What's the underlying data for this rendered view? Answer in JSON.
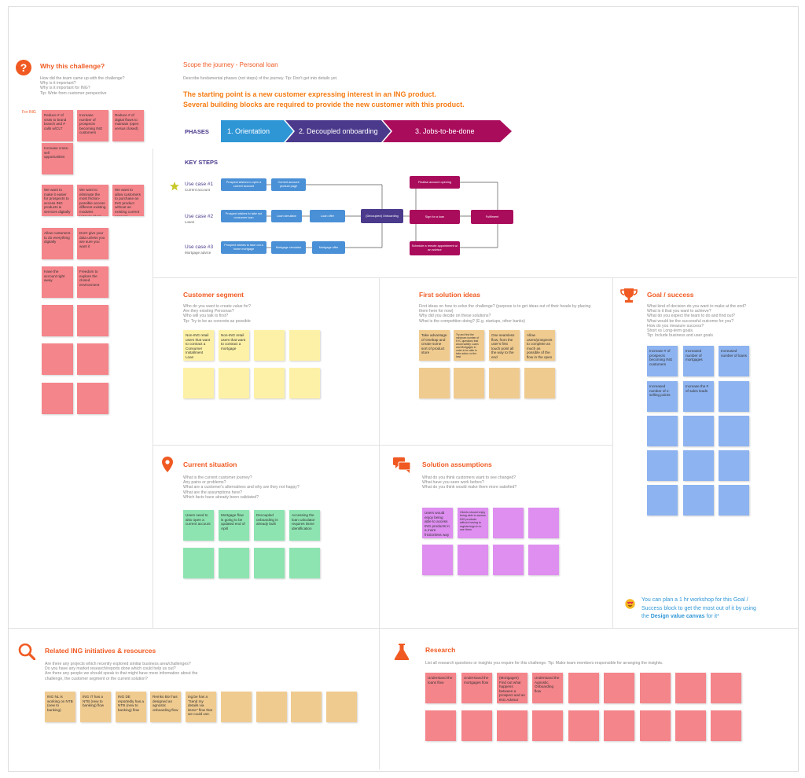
{
  "colors": {
    "accent": "#f05a22",
    "phase1": "#2f96d6",
    "phase2": "#4b3a8c",
    "phase3": "#aa0c5c",
    "step": "#4a90d6",
    "pink": "#f4858b",
    "yellow": "#fdf1a7",
    "orange": "#f0cb90",
    "blue": "#8db3f0",
    "green": "#8ee4b1",
    "purple": "#de8ff0",
    "link": "#2f96d6"
  },
  "why": {
    "title": "Why this challenge?",
    "icon": "question-icon",
    "desc": [
      "How did the team came up with the challenge?",
      "Why is it important?",
      "Why is it important for ING?",
      "Tip: Write from customer perspective"
    ],
    "for_ing": "For ING",
    "stickies": [
      "Reduce # of visits to brand branch and # calls w/CLT",
      "Increase number of prospects becoming ING customers",
      "Reduce # of digital flows to maintain (open versus closed)",
      "Increase cross-sell opportunities",
      "We want to make it easier for prospects to access ING products & services digitally",
      "We want to eliminate the most friction-possible access different existing modules (+break silos)",
      "We want to allow customers to purchase an ING product without an existing current account",
      "Allow customers to do everything digitally",
      "Don't give your data unless you are sure you want it",
      "Have the account right away",
      "Freedom to explore the closed environment"
    ]
  },
  "journey": {
    "title": "Scope the journey - Personal loan",
    "desc": "Describe fundamental phases (not steps) of the journey. Tip: Don't get into details yet.",
    "headline1": "The starting point is a new customer expressing interest in an ING product.",
    "headline2": "Several building blocks are required to provide the new customer with this product.",
    "phases_label": "PHASES",
    "phases": [
      "1. Orientation",
      "2. Decoupled onboarding",
      "3. Jobs-to-be-done"
    ],
    "key_steps_label": "KEY STEPS",
    "use_cases": [
      {
        "label": "Use case #1",
        "sub": "Current account"
      },
      {
        "label": "Use case #2",
        "sub": "Loans"
      },
      {
        "label": "Use case #3",
        "sub": "Mortgage advice"
      }
    ],
    "steps": {
      "uc1a": "Prospect wishes to open a current account",
      "uc1b": "Current account product page",
      "uc2a": "Prospect wishes to take out consumer loan",
      "uc2b": "Loan simulator",
      "uc2c": "Loan offer",
      "uc3a": "Prospect wishes to take out a home mortgage",
      "uc3b": "Mortgage simulator",
      "uc3c": "Mortgage offer",
      "onboarding": "(Decoupled) Onboarding",
      "finalise": "Finalise account opening",
      "sign": "Sign for a loan",
      "fulfilment": "Fulfilment",
      "schedule": "Schedule a remote appointment w/ an advisor"
    }
  },
  "segment": {
    "title": "Customer segment",
    "desc": [
      "Who do you want to create value for?",
      "Are they existing Personas?",
      "Who will you talk to first?",
      "Tip: Try to be as concrete as possible"
    ],
    "stickies": [
      "Non-ING retail users that want to contract a Consumer Installment Loan",
      "Non-ING retail users that want to contract a mortgage"
    ]
  },
  "ideas": {
    "title": "First solution ideas",
    "desc": [
      "First ideas on how to solve the challenge? (purpose is to get ideas out of their heads by placing",
      "them here for now)",
      "Why did you decide on these solutions?",
      "What is the competition doing? (E.g. startups, other banks)"
    ],
    "stickies": [
      "Take advantage of Onebap and create some sort of product store",
      "Try and find the minimum number of KYC questions that would satisfy Loans and Mortgages in order to be able to take action on the lead",
      "One seamless flow, from the user's first touch point all the way to the end",
      "Allow users/prospects to complete as much as possible of the flow in the open"
    ]
  },
  "goal": {
    "title": "Goal / success",
    "desc": [
      "What kind of decision do you want to make at the end?",
      "What is it that you want to achieve?",
      "What do you expect the team to do and find out?",
      "What would be the successful outcome for you?",
      "How do you measure success?",
      "Short vs Long-term goals.",
      "Tip: Include business and user goals"
    ],
    "stickies": [
      "Increase # of prospects becoming ING customers",
      "Increased number of mortgages",
      "Increased number of loans",
      "Increased number of x-selling points",
      "Increase the # of sales leads"
    ],
    "tip1": "You can plan a 1 hr workshop for this Goal /",
    "tip2": "Success block to get the most out of it by using",
    "tip3a": "the ",
    "tip3b": "Design value canvas",
    "tip3c": " for it*"
  },
  "current": {
    "title": "Current situation",
    "desc": [
      "What is the current customer journey?",
      "Any pains or problems?",
      "What are a customer's alternatives and why are they not happy?",
      "What are the assumptions here?",
      "Which facts have already been validated?"
    ],
    "stickies": [
      "Users need to also open a current account",
      "Mortgage flow is going to be updated end of April",
      "Decoupled onboarding is already built",
      "Accessing the loan calculator requires itsme identification"
    ]
  },
  "assumptions": {
    "title": "Solution assumptions",
    "desc": [
      "What do you think customers want to see changed?",
      "What have you seen work before?",
      "What do you think would make them more satisfied?"
    ],
    "stickies": [
      "Users would enjoy being able to access ING products in a more frictionless way",
      "Clients should enjoy being able to access ING products without having to register/sign in to use them"
    ]
  },
  "related": {
    "title": "Related ING initiatives & resources",
    "desc": [
      "Are there any projects which recently explored similar business area/challenges?",
      "Do you have any market research/reports done which could help us out?",
      "Are there any people we should speak to that might have more information about the",
      "challenge, the customer segment or the current solution?"
    ],
    "stickies": [
      "ING NL is working on NTB (new to banking)",
      "ING IT has a NTB (new to banking) flow",
      "ING DE reportedly has a NTB (new to banking) flow",
      "Remko Bor has designed an agnostic onboarding flow",
      "ing.be has a \"Send my details via itsme\" flow that we could use."
    ]
  },
  "research": {
    "title": "Research",
    "desc": "List all research questions or insights you require for this challenge. Tip: Make team members responsible for arranging the insights.",
    "stickies": [
      "Understand the loans flow",
      "Understand the mortgages flow",
      "(Mortgages) Find out what happens between a prospect and an ING Advisor",
      "Understand the Agnostic Onboarding flow"
    ]
  }
}
